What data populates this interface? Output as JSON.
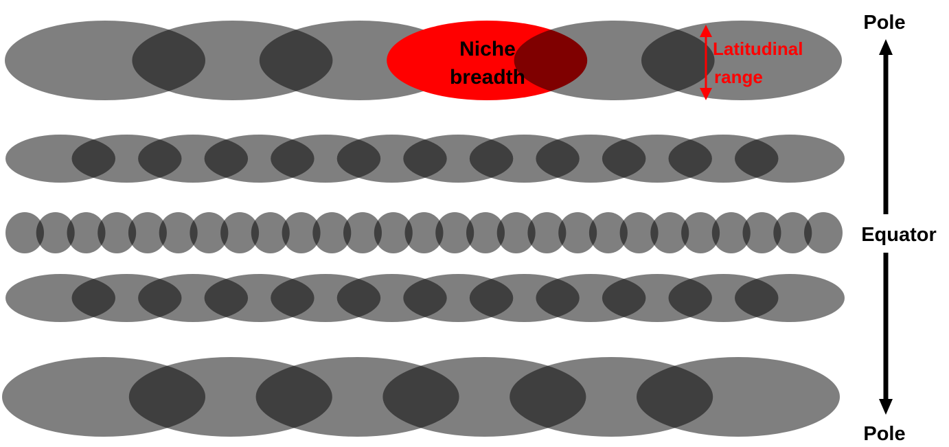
{
  "labels": {
    "niche_line1": "Niche",
    "niche_line2": "breadth",
    "range_line1": "Latitudinal",
    "range_line2": "range",
    "pole_top": "Pole",
    "equator": "Equator",
    "pole_bottom": "Pole"
  },
  "colors": {
    "ellipse": "#000000",
    "ellipse_opacity": 0.5,
    "highlight": "#ff0000",
    "text": "#000000",
    "arrow": "#000000"
  },
  "rows": [
    {
      "band": "pole-top",
      "ellipse_count": 6,
      "highlighted_index": 3
    },
    {
      "band": "mid-top",
      "ellipse_count": 12
    },
    {
      "band": "equator",
      "ellipse_count": 27
    },
    {
      "band": "mid-bottom",
      "ellipse_count": 12
    },
    {
      "band": "pole-bottom",
      "ellipse_count": 6
    }
  ]
}
